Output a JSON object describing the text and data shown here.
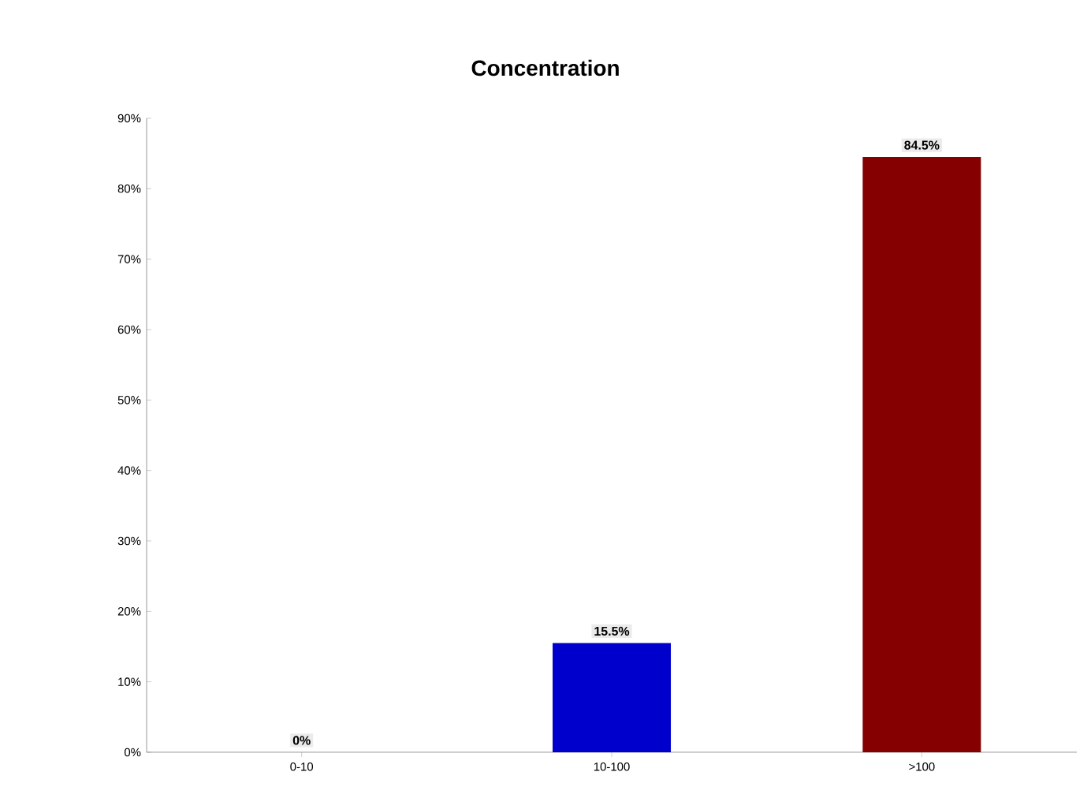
{
  "chart_data": {
    "type": "bar",
    "title": "Concentration",
    "categories": [
      "0-10",
      "10-100",
      ">100"
    ],
    "values": [
      0,
      15.5,
      84.5
    ],
    "colors": [
      "#1f3fbf",
      "#0000cc",
      "#850000"
    ],
    "value_labels": [
      "0%",
      "15.5%",
      "84.5%"
    ],
    "ylim": [
      0,
      90
    ],
    "yticks": [
      {
        "value": 0,
        "label": "0%"
      },
      {
        "value": 10,
        "label": "10%"
      },
      {
        "value": 20,
        "label": "20%"
      },
      {
        "value": 30,
        "label": "30%"
      },
      {
        "value": 40,
        "label": "40%"
      },
      {
        "value": 50,
        "label": "50%"
      },
      {
        "value": 60,
        "label": "60%"
      },
      {
        "value": 70,
        "label": "70%"
      },
      {
        "value": 80,
        "label": "80%"
      },
      {
        "value": 90,
        "label": "90%"
      }
    ],
    "grid": false
  }
}
